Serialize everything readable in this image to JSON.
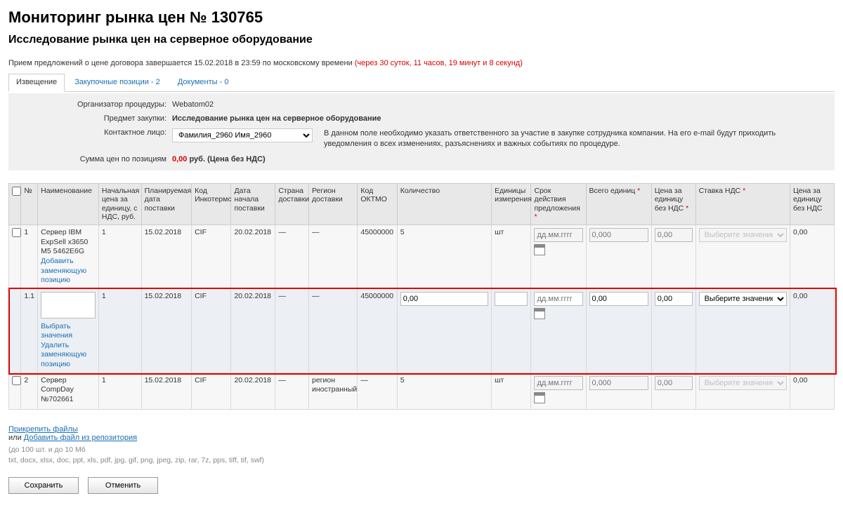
{
  "title": "Мониторинг рынка цен № 130765",
  "subtitle": "Исследование рынка цен на серверное оборудование",
  "deadline_text": "Прием предложений о цене договора завершается 15.02.2018 в 23:59 по московскому времени",
  "countdown": "(через 30 суток, 11 часов, 19 минут и 8 секунд)",
  "tabs": [
    {
      "label": "Извещение",
      "active": true
    },
    {
      "label": "Закупочные позиции - 2",
      "active": false
    },
    {
      "label": "Документы - 0",
      "active": false
    }
  ],
  "info": {
    "organizer_label": "Организатор процедуры:",
    "organizer": "Webatom02",
    "subject_label": "Предмет закупки:",
    "subject": "Исследование рынка цен на серверное оборудование",
    "contact_label": "Контактное лицо:",
    "contact_value": "Фамилия_2960 Имя_2960",
    "contact_note": "В данном поле необходимо указать ответственного за участие в закупке сотрудника компании. На его e-mail будут приходить уведомления о всех изменениях, разъяснениях и важных событиях по процедуре.",
    "sum_label": "Сумма цен по позициям",
    "sum_value": "0,00",
    "sum_suffix": "руб. (Цена без НДС)"
  },
  "columns": {
    "no": "№",
    "name": "Наименование",
    "start_price": "Начальная цена за единицу, с НДС, руб.",
    "plan_date": "Планируемая дата поставки",
    "incoterms": "Код Инкотермс",
    "start_date": "Дата начала поставки",
    "country": "Страна доставки",
    "region": "Регион доставки",
    "oktmo": "Код ОКТМО",
    "qty": "Количество",
    "unit": "Единицы измерения",
    "valid": "Срок действия предложения",
    "total_units": "Всего единиц",
    "price_no_vat": "Цена за единицу без НДС",
    "vat": "Ставка НДС",
    "final": "Цена за единицу без НДС"
  },
  "rows": [
    {
      "no": "1",
      "name": "Сервер IBM ExpSell x3650 M5 5462E6G",
      "name_link": "Добавить заменяющую позицию",
      "start_price": "1",
      "plan_date": "15.02.2018",
      "incoterms": "CIF",
      "start_date": "20.02.2018",
      "country": "—",
      "region": "—",
      "oktmo": "45000000",
      "qty": "5",
      "unit": "шт",
      "valid_ph": "дд.мм.гггг",
      "total_ph": "0,000",
      "price_ph": "0,00",
      "vat_ph": "Выберите значение",
      "final": "0,00",
      "disabled": true
    },
    {
      "no": "1.1",
      "name": "",
      "name_links": [
        "Выбрать значения",
        "Удалить заменяющую позицию"
      ],
      "start_price": "1",
      "plan_date": "15.02.2018",
      "incoterms": "CIF",
      "start_date": "20.02.2018",
      "country": "—",
      "region": "—",
      "oktmo": "45000000",
      "qty_val": "0,00",
      "unit_val": "",
      "valid_ph": "дд.мм.гггг",
      "total_val": "0,00",
      "price_val": "0,00",
      "vat_val": "Выберите значение",
      "final": "0,00",
      "disabled": false,
      "highlight": true
    },
    {
      "no": "2",
      "name": "Сервер CompDay №702661",
      "start_price": "1",
      "plan_date": "15.02.2018",
      "incoterms": "CIF",
      "start_date": "20.02.2018",
      "country": "—",
      "region": "регион иностранный",
      "oktmo": "—",
      "qty": "5",
      "unit": "шт",
      "valid_ph": "дд.мм.гггг",
      "total_ph": "0,000",
      "price_ph": "0,00",
      "vat_ph": "Выберите значение",
      "final": "0,00",
      "disabled": true
    }
  ],
  "attach": {
    "link1": "Прикрепить файлы",
    "or": "или",
    "link2": "Добавить файл из репозитория",
    "hint1": "(до 100 шт. и до 10 Мб",
    "hint2": "txt, docx, xlsx, doc, ppt, xls, pdf, jpg, gif, png, jpeg, zip, rar, 7z, pps, tiff, tif, swf)"
  },
  "buttons": {
    "save": "Сохранить",
    "cancel": "Отменить"
  },
  "colors": {
    "link": "#1a6fb5",
    "highlight": "#d00",
    "header_bg": "#e8e8e8",
    "row_odd": "#f7f7f7",
    "row_even": "#eceff3"
  }
}
